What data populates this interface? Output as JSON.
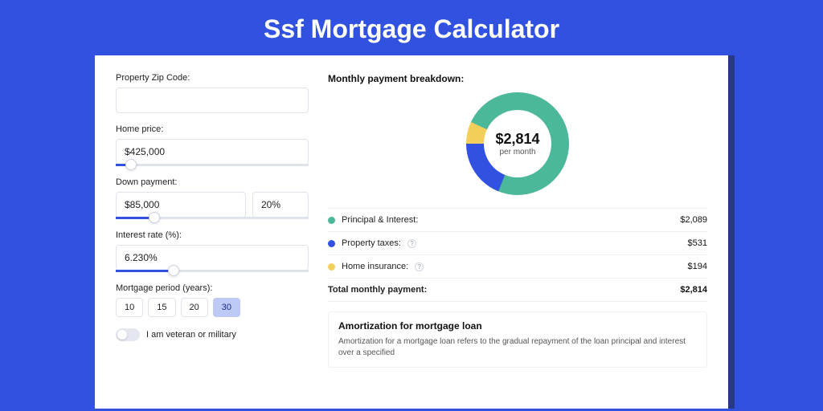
{
  "page": {
    "title": "Ssf Mortgage Calculator"
  },
  "colors": {
    "page_bg": "#3151e0",
    "card_shadow": "#27378a",
    "principal": "#4bb89a",
    "taxes": "#3151e0",
    "insurance": "#f2cf5b"
  },
  "form": {
    "zip": {
      "label": "Property Zip Code:",
      "value": ""
    },
    "home_price": {
      "label": "Home price:",
      "value": "$425,000",
      "slider_percent": 8
    },
    "down_payment": {
      "label": "Down payment:",
      "amount": "$85,000",
      "percent": "20%",
      "slider_percent": 20
    },
    "interest_rate": {
      "label": "Interest rate (%):",
      "value": "6.230%",
      "slider_percent": 30
    },
    "mortgage_period": {
      "label": "Mortgage period (years):",
      "options": [
        "10",
        "15",
        "20",
        "30"
      ],
      "selected": "30"
    },
    "veteran": {
      "label": "I am veteran or military",
      "checked": false
    }
  },
  "breakdown": {
    "title": "Monthly payment breakdown:",
    "donut": {
      "center_amount": "$2,814",
      "center_sub": "per month",
      "segments": [
        {
          "key": "principal",
          "deg": 267,
          "color": "#4bb89a"
        },
        {
          "key": "taxes",
          "deg": 68,
          "color": "#3151e0"
        },
        {
          "key": "insurance",
          "deg": 25,
          "color": "#f2cf5b"
        }
      ]
    },
    "items": [
      {
        "label": "Principal & Interest:",
        "value": "$2,089",
        "color": "#4bb89a",
        "info": false
      },
      {
        "label": "Property taxes:",
        "value": "$531",
        "color": "#3151e0",
        "info": true
      },
      {
        "label": "Home insurance:",
        "value": "$194",
        "color": "#f2cf5b",
        "info": true
      }
    ],
    "total": {
      "label": "Total monthly payment:",
      "value": "$2,814"
    }
  },
  "amortization": {
    "title": "Amortization for mortgage loan",
    "text": "Amortization for a mortgage loan refers to the gradual repayment of the loan principal and interest over a specified"
  }
}
